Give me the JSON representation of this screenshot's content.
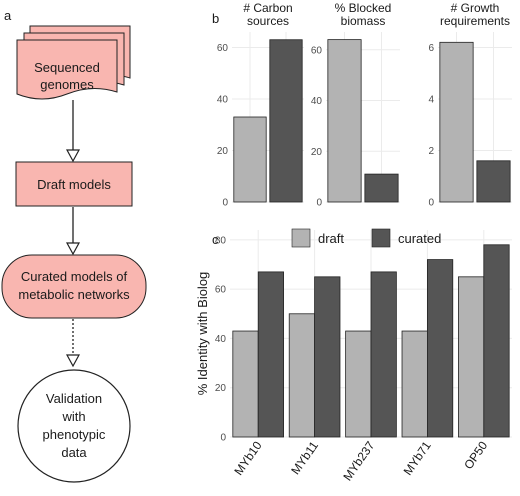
{
  "panel_labels": {
    "a": "a",
    "b": "b",
    "c": "c"
  },
  "flowchart": {
    "fill_color": "#f9b6b0",
    "steps": [
      {
        "text": [
          "Sequenced",
          "genomes"
        ]
      },
      {
        "text": [
          "Draft models"
        ]
      },
      {
        "text": [
          "Curated models of",
          "metabolic networks"
        ]
      },
      {
        "text": [
          "Validation",
          "with",
          "phenotypic",
          "data"
        ]
      }
    ]
  },
  "chart_data": [
    {
      "type": "bar",
      "title": "# Carbon sources",
      "title_lines": [
        "# Carbon",
        "sources"
      ],
      "categories": [
        "draft",
        "curated"
      ],
      "values": [
        33,
        63
      ],
      "ylim": [
        0,
        66
      ],
      "yticks": [
        0,
        20,
        40,
        60
      ],
      "grid": true
    },
    {
      "type": "bar",
      "title": "% Blocked biomass",
      "title_lines": [
        "% Blocked",
        "biomass"
      ],
      "categories": [
        "draft",
        "curated"
      ],
      "values": [
        64,
        11
      ],
      "ylim": [
        0,
        67
      ],
      "yticks": [
        0,
        20,
        40,
        60
      ],
      "grid": true
    },
    {
      "type": "bar",
      "title": "# Growth requirements",
      "title_lines": [
        "# Growth",
        "requirements"
      ],
      "categories": [
        "draft",
        "curated"
      ],
      "values": [
        6.2,
        1.6
      ],
      "ylim": [
        0,
        6.6
      ],
      "yticks": [
        0,
        2,
        4,
        6
      ],
      "grid": true
    },
    {
      "type": "bar",
      "title": "",
      "ylabel": "% Identity with Biolog",
      "categories": [
        "MYb10",
        "MYb11",
        "MYb237",
        "MYb71",
        "OP50"
      ],
      "series": [
        {
          "name": "draft",
          "color": "#b3b3b3",
          "values": [
            43,
            50,
            43,
            43,
            65
          ]
        },
        {
          "name": "curated",
          "color": "#555555",
          "values": [
            67,
            65,
            67,
            72,
            78
          ]
        }
      ],
      "ylim": [
        0,
        84
      ],
      "yticks": [
        0,
        20,
        40,
        60,
        80
      ],
      "legend_placement": "top",
      "grid": true
    }
  ],
  "colors": {
    "draft": "#b3b3b3",
    "curated": "#555555",
    "grid": "#ebebeb"
  }
}
